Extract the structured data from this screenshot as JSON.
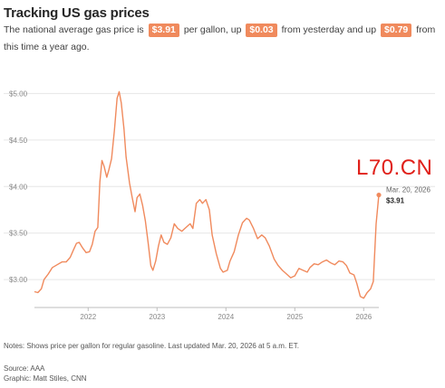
{
  "title": "Tracking US gas prices",
  "subtitle": {
    "part1": "The national average gas price is",
    "price": "$3.91",
    "part2": "per gallon, up",
    "day_change": "$0.03",
    "part3": "from yesterday and up",
    "year_change": "$0.79",
    "part4": "from this time a year ago."
  },
  "colors": {
    "line": "#f08a5d",
    "badge": "#f08a5d",
    "watermark": "#e0201a",
    "grid": "#e6e6e6"
  },
  "watermark": "L70.CN",
  "notes": "Notes: Shows price per gallon for regular gasoline. Last updated Mar. 20, 2026 at 5 a.m. ET.",
  "source": "Source: AAA",
  "graphic": "Graphic: Matt Stiles, CNN",
  "chart_data": {
    "type": "line",
    "title": "Tracking US gas prices",
    "xlabel": "",
    "ylabel": "",
    "ylim": [
      2.7,
      5.15
    ],
    "xlim": [
      2021.22,
      2026.22
    ],
    "grid": true,
    "y_ticks": [
      {
        "value": 3.0,
        "label": "$3.00"
      },
      {
        "value": 3.5,
        "label": "$3.50"
      },
      {
        "value": 4.0,
        "label": "$4.00"
      },
      {
        "value": 4.5,
        "label": "$4.50"
      },
      {
        "value": 5.0,
        "label": "$5.00"
      }
    ],
    "x_ticks": [
      {
        "value": 2022,
        "label": "2022"
      },
      {
        "value": 2023,
        "label": "2023"
      },
      {
        "value": 2024,
        "label": "2024"
      },
      {
        "value": 2025,
        "label": "2025"
      },
      {
        "value": 2026,
        "label": "2026"
      }
    ],
    "annotation": {
      "x": 2026.22,
      "y": 3.91,
      "date": "Mar. 20, 2026",
      "value": "$3.91"
    },
    "series": [
      {
        "name": "",
        "points": [
          [
            2021.22,
            2.87
          ],
          [
            2021.27,
            2.86
          ],
          [
            2021.32,
            2.9
          ],
          [
            2021.36,
            3.0
          ],
          [
            2021.42,
            3.06
          ],
          [
            2021.48,
            3.13
          ],
          [
            2021.55,
            3.16
          ],
          [
            2021.62,
            3.19
          ],
          [
            2021.68,
            3.19
          ],
          [
            2021.74,
            3.24
          ],
          [
            2021.78,
            3.31
          ],
          [
            2021.83,
            3.39
          ],
          [
            2021.87,
            3.4
          ],
          [
            2021.92,
            3.34
          ],
          [
            2021.97,
            3.29
          ],
          [
            2022.02,
            3.3
          ],
          [
            2022.06,
            3.38
          ],
          [
            2022.1,
            3.52
          ],
          [
            2022.14,
            3.56
          ],
          [
            2022.17,
            4.05
          ],
          [
            2022.2,
            4.28
          ],
          [
            2022.23,
            4.22
          ],
          [
            2022.27,
            4.1
          ],
          [
            2022.3,
            4.18
          ],
          [
            2022.34,
            4.3
          ],
          [
            2022.38,
            4.6
          ],
          [
            2022.42,
            4.95
          ],
          [
            2022.45,
            5.02
          ],
          [
            2022.48,
            4.9
          ],
          [
            2022.52,
            4.62
          ],
          [
            2022.55,
            4.32
          ],
          [
            2022.6,
            4.04
          ],
          [
            2022.64,
            3.88
          ],
          [
            2022.68,
            3.73
          ],
          [
            2022.71,
            3.88
          ],
          [
            2022.75,
            3.92
          ],
          [
            2022.79,
            3.8
          ],
          [
            2022.83,
            3.63
          ],
          [
            2022.87,
            3.4
          ],
          [
            2022.91,
            3.15
          ],
          [
            2022.94,
            3.1
          ],
          [
            2022.98,
            3.2
          ],
          [
            2023.02,
            3.36
          ],
          [
            2023.06,
            3.48
          ],
          [
            2023.1,
            3.4
          ],
          [
            2023.15,
            3.38
          ],
          [
            2023.2,
            3.45
          ],
          [
            2023.25,
            3.6
          ],
          [
            2023.3,
            3.55
          ],
          [
            2023.36,
            3.52
          ],
          [
            2023.42,
            3.56
          ],
          [
            2023.48,
            3.6
          ],
          [
            2023.52,
            3.55
          ],
          [
            2023.57,
            3.82
          ],
          [
            2023.62,
            3.86
          ],
          [
            2023.66,
            3.82
          ],
          [
            2023.71,
            3.86
          ],
          [
            2023.76,
            3.75
          ],
          [
            2023.8,
            3.48
          ],
          [
            2023.86,
            3.28
          ],
          [
            2023.92,
            3.12
          ],
          [
            2023.96,
            3.08
          ],
          [
            2024.02,
            3.1
          ],
          [
            2024.06,
            3.2
          ],
          [
            2024.12,
            3.3
          ],
          [
            2024.18,
            3.48
          ],
          [
            2024.24,
            3.61
          ],
          [
            2024.3,
            3.66
          ],
          [
            2024.34,
            3.64
          ],
          [
            2024.4,
            3.55
          ],
          [
            2024.46,
            3.44
          ],
          [
            2024.52,
            3.48
          ],
          [
            2024.57,
            3.45
          ],
          [
            2024.63,
            3.36
          ],
          [
            2024.7,
            3.22
          ],
          [
            2024.76,
            3.15
          ],
          [
            2024.82,
            3.1
          ],
          [
            2024.88,
            3.06
          ],
          [
            2024.94,
            3.02
          ],
          [
            2025.0,
            3.04
          ],
          [
            2025.06,
            3.12
          ],
          [
            2025.12,
            3.1
          ],
          [
            2025.18,
            3.08
          ],
          [
            2025.22,
            3.13
          ],
          [
            2025.28,
            3.17
          ],
          [
            2025.34,
            3.16
          ],
          [
            2025.4,
            3.19
          ],
          [
            2025.46,
            3.21
          ],
          [
            2025.52,
            3.18
          ],
          [
            2025.58,
            3.16
          ],
          [
            2025.64,
            3.2
          ],
          [
            2025.7,
            3.19
          ],
          [
            2025.75,
            3.15
          ],
          [
            2025.8,
            3.07
          ],
          [
            2025.86,
            3.05
          ],
          [
            2025.9,
            2.96
          ],
          [
            2025.95,
            2.82
          ],
          [
            2026.0,
            2.8
          ],
          [
            2026.05,
            2.86
          ],
          [
            2026.1,
            2.9
          ],
          [
            2026.14,
            2.98
          ],
          [
            2026.18,
            3.6
          ],
          [
            2026.22,
            3.91
          ]
        ]
      }
    ]
  }
}
